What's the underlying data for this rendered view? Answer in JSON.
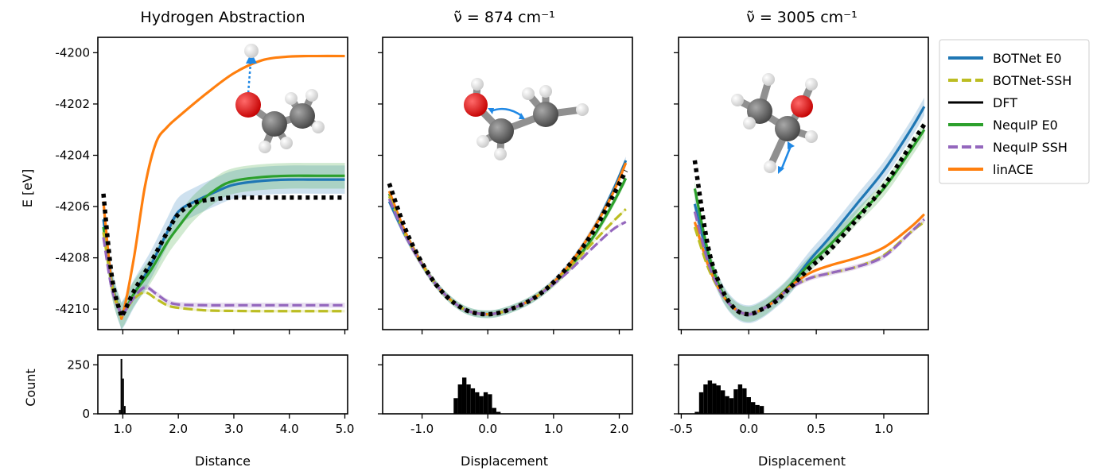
{
  "figure": {
    "panel_titles": [
      "Hydrogen Abstraction",
      "ν̃ = 874 cm⁻¹",
      "ν̃ = 3005 cm⁻¹"
    ],
    "ylabel_top": "E [eV]",
    "ylabel_bottom": "Count",
    "xlabels": [
      "Distance",
      "Displacement",
      "Displacement"
    ]
  },
  "legend": [
    {
      "label": "BOTNet E0",
      "color": "#1f77b4",
      "dash": "solid"
    },
    {
      "label": "BOTNet-SSH",
      "color": "#bcbd22",
      "dash": "dashed"
    },
    {
      "label": "DFT",
      "color": "#000000",
      "dash": "solid"
    },
    {
      "label": "NequIP E0",
      "color": "#2ca02c",
      "dash": "solid"
    },
    {
      "label": "NequIP SSH",
      "color": "#9467bd",
      "dash": "dashed"
    },
    {
      "label": "linACE",
      "color": "#ff7f0e",
      "dash": "solid"
    }
  ],
  "chart_data": [
    {
      "type": "line",
      "title": "Hydrogen Abstraction",
      "ylabel": "E [eV]",
      "xlabel": "Distance",
      "xlim": [
        0.55,
        5.05
      ],
      "ylim": [
        -4210.8,
        -4199.4
      ],
      "xticks": [
        1.0,
        2.0,
        3.0,
        4.0,
        5.0
      ],
      "xtick_labels": [
        "1.0",
        "2.0",
        "3.0",
        "4.0",
        "5.0"
      ],
      "yticks": [
        -4210,
        -4208,
        -4206,
        -4204,
        -4202,
        -4200
      ],
      "ytick_labels": [
        "-4210",
        "-4208",
        "-4206",
        "-4204",
        "-4202",
        "-4200"
      ],
      "series": [
        {
          "name": "BOTNet E0",
          "x": [
            0.65,
            0.8,
            0.95,
            1.0,
            1.2,
            1.5,
            1.8,
            2.0,
            2.3,
            2.7,
            3.0,
            3.5,
            4.0,
            4.5,
            5.0
          ],
          "y": [
            -4206.5,
            -4208.9,
            -4210.1,
            -4210.2,
            -4209.4,
            -4208.3,
            -4207.0,
            -4206.2,
            -4205.8,
            -4205.4,
            -4205.15,
            -4205.0,
            -4204.95,
            -4204.95,
            -4204.95
          ],
          "band": 0.55
        },
        {
          "name": "BOTNet-SSH",
          "x": [
            0.65,
            0.8,
            0.95,
            1.0,
            1.2,
            1.4,
            1.6,
            1.8,
            2.0,
            2.5,
            3.0,
            3.5,
            4.0,
            4.5,
            5.0
          ],
          "y": [
            -4207.0,
            -4209.0,
            -4210.1,
            -4210.2,
            -4209.6,
            -4209.35,
            -4209.6,
            -4209.85,
            -4209.95,
            -4210.05,
            -4210.07,
            -4210.08,
            -4210.08,
            -4210.08,
            -4210.08
          ],
          "band": 0.05
        },
        {
          "name": "DFT",
          "x": [
            0.65,
            0.8,
            0.95,
            1.0,
            1.2,
            1.5,
            1.8,
            2.0,
            2.3,
            2.7,
            3.0,
            3.5,
            4.0,
            4.5,
            5.0
          ],
          "y": [
            -4205.5,
            -4208.7,
            -4210.1,
            -4210.2,
            -4209.3,
            -4208.2,
            -4207.0,
            -4206.3,
            -4205.85,
            -4205.7,
            -4205.65,
            -4205.65,
            -4205.65,
            -4205.65,
            -4205.65
          ],
          "band": 0
        },
        {
          "name": "NequIP E0",
          "x": [
            0.65,
            0.8,
            0.95,
            1.0,
            1.2,
            1.5,
            1.8,
            2.0,
            2.3,
            2.7,
            3.0,
            3.5,
            4.0,
            4.5,
            5.0
          ],
          "y": [
            -4206.8,
            -4209.0,
            -4210.1,
            -4210.2,
            -4209.4,
            -4208.5,
            -4207.4,
            -4206.8,
            -4206.0,
            -4205.3,
            -4205.0,
            -4204.85,
            -4204.8,
            -4204.8,
            -4204.8
          ],
          "band": 0.5
        },
        {
          "name": "NequIP SSH",
          "x": [
            0.65,
            0.8,
            0.95,
            1.0,
            1.2,
            1.4,
            1.6,
            1.8,
            2.0,
            2.5,
            3.0,
            3.5,
            4.0,
            4.5,
            5.0
          ],
          "y": [
            -4207.2,
            -4209.2,
            -4210.1,
            -4210.2,
            -4209.55,
            -4209.15,
            -4209.4,
            -4209.7,
            -4209.82,
            -4209.85,
            -4209.85,
            -4209.85,
            -4209.85,
            -4209.85,
            -4209.85
          ],
          "band": 0.1
        },
        {
          "name": "linACE",
          "x": [
            0.65,
            0.8,
            0.95,
            1.0,
            1.2,
            1.4,
            1.6,
            1.8,
            2.0,
            2.5,
            3.0,
            3.5,
            4.0,
            4.5,
            5.0
          ],
          "y": [
            -4205.8,
            -4209.0,
            -4210.1,
            -4210.2,
            -4208.0,
            -4205.2,
            -4203.5,
            -4202.9,
            -4202.5,
            -4201.6,
            -4200.8,
            -4200.3,
            -4200.15,
            -4200.13,
            -4200.13
          ],
          "band": 0
        }
      ]
    },
    {
      "type": "line",
      "title": "ν̃ = 874 cm⁻¹",
      "xlabel": "Displacement",
      "xlim": [
        -1.6,
        2.2
      ],
      "ylim": [
        -4210.8,
        -4199.4
      ],
      "xticks": [
        -1.0,
        0.0,
        1.0,
        2.0
      ],
      "xtick_labels": [
        "-1.0",
        "0.0",
        "1.0",
        "2.0"
      ],
      "yticks": [
        -4210,
        -4208,
        -4206,
        -4204,
        -4202,
        -4200
      ],
      "series": [
        {
          "name": "BOTNet E0",
          "x": [
            -1.5,
            -1.2,
            -0.8,
            -0.4,
            0.0,
            0.4,
            0.8,
            1.2,
            1.6,
            1.9,
            2.1
          ],
          "y": [
            -4205.8,
            -4207.4,
            -4209.0,
            -4209.95,
            -4210.2,
            -4209.95,
            -4209.4,
            -4208.4,
            -4206.9,
            -4205.4,
            -4204.2
          ],
          "band": 0.15
        },
        {
          "name": "BOTNet-SSH",
          "x": [
            -1.5,
            -1.2,
            -0.8,
            -0.4,
            0.0,
            0.4,
            0.8,
            1.2,
            1.6,
            1.9,
            2.1
          ],
          "y": [
            -4205.6,
            -4207.4,
            -4209.0,
            -4209.95,
            -4210.2,
            -4209.95,
            -4209.4,
            -4208.5,
            -4207.4,
            -4206.6,
            -4206.1
          ],
          "band": 0.05
        },
        {
          "name": "DFT",
          "x": [
            -1.5,
            -1.2,
            -0.8,
            -0.4,
            0.0,
            0.4,
            0.8,
            1.2,
            1.6,
            1.9,
            2.1
          ],
          "y": [
            -4205.1,
            -4207.2,
            -4209.0,
            -4209.95,
            -4210.2,
            -4209.95,
            -4209.4,
            -4208.4,
            -4207.0,
            -4205.6,
            -4204.6
          ],
          "band": 0
        },
        {
          "name": "NequIP E0",
          "x": [
            -1.5,
            -1.2,
            -0.8,
            -0.4,
            0.0,
            0.4,
            0.8,
            1.2,
            1.6,
            1.9,
            2.1
          ],
          "y": [
            -4205.5,
            -4207.3,
            -4209.0,
            -4209.95,
            -4210.2,
            -4209.95,
            -4209.4,
            -4208.5,
            -4207.2,
            -4205.9,
            -4204.9
          ],
          "band": 0.15
        },
        {
          "name": "NequIP SSH",
          "x": [
            -1.5,
            -1.2,
            -0.8,
            -0.4,
            0.0,
            0.4,
            0.8,
            1.2,
            1.6,
            1.9,
            2.1
          ],
          "y": [
            -4205.7,
            -4207.4,
            -4209.0,
            -4209.95,
            -4210.2,
            -4209.95,
            -4209.4,
            -4208.6,
            -4207.6,
            -4206.9,
            -4206.6
          ],
          "band": 0.05
        },
        {
          "name": "linACE",
          "x": [
            -1.5,
            -1.2,
            -0.8,
            -0.4,
            0.0,
            0.4,
            0.8,
            1.2,
            1.6,
            1.9,
            2.1
          ],
          "y": [
            -4205.4,
            -4207.3,
            -4209.0,
            -4209.95,
            -4210.2,
            -4209.95,
            -4209.4,
            -4208.4,
            -4206.9,
            -4205.5,
            -4204.3
          ],
          "band": 0
        }
      ]
    },
    {
      "type": "line",
      "title": "ν̃ = 3005 cm⁻¹",
      "xlabel": "Displacement",
      "xlim": [
        -0.52,
        1.33
      ],
      "ylim": [
        -4210.8,
        -4199.4
      ],
      "xticks": [
        -0.5,
        0.0,
        0.5,
        1.0
      ],
      "xtick_labels": [
        "-0.5",
        "0.0",
        "0.5",
        "1.0"
      ],
      "yticks": [
        -4210,
        -4208,
        -4206,
        -4204,
        -4202,
        -4200
      ],
      "series": [
        {
          "name": "BOTNet E0",
          "x": [
            -0.4,
            -0.3,
            -0.2,
            -0.1,
            0.0,
            0.1,
            0.2,
            0.3,
            0.45,
            0.6,
            0.8,
            1.0,
            1.2,
            1.3
          ],
          "y": [
            -4205.9,
            -4208.0,
            -4209.3,
            -4210.0,
            -4210.2,
            -4210.0,
            -4209.6,
            -4209.1,
            -4208.1,
            -4207.2,
            -4205.9,
            -4204.6,
            -4203.0,
            -4202.1
          ],
          "band": 0.35
        },
        {
          "name": "BOTNet-SSH",
          "x": [
            -0.4,
            -0.3,
            -0.2,
            -0.1,
            0.0,
            0.1,
            0.2,
            0.3,
            0.45,
            0.6,
            0.8,
            1.0,
            1.2,
            1.3
          ],
          "y": [
            -4206.8,
            -4208.4,
            -4209.4,
            -4210.0,
            -4210.2,
            -4210.0,
            -4209.65,
            -4209.2,
            -4208.8,
            -4208.6,
            -4208.35,
            -4207.9,
            -4207.0,
            -4206.6
          ],
          "band": 0.05
        },
        {
          "name": "DFT",
          "x": [
            -0.4,
            -0.3,
            -0.2,
            -0.1,
            0.0,
            0.1,
            0.2,
            0.3,
            0.45,
            0.6,
            0.8,
            1.0,
            1.2,
            1.3
          ],
          "y": [
            -4204.2,
            -4207.6,
            -4209.2,
            -4210.0,
            -4210.2,
            -4210.0,
            -4209.7,
            -4209.2,
            -4208.4,
            -4207.7,
            -4206.5,
            -4205.2,
            -4203.6,
            -4202.8
          ],
          "band": 0
        },
        {
          "name": "NequIP E0",
          "x": [
            -0.4,
            -0.3,
            -0.2,
            -0.1,
            0.0,
            0.1,
            0.2,
            0.3,
            0.45,
            0.6,
            0.8,
            1.0,
            1.2,
            1.3
          ],
          "y": [
            -4205.3,
            -4207.8,
            -4209.3,
            -4210.0,
            -4210.2,
            -4210.0,
            -4209.6,
            -4209.1,
            -4208.25,
            -4207.5,
            -4206.4,
            -4205.3,
            -4203.8,
            -4203.0
          ],
          "band": 0.3
        },
        {
          "name": "NequIP SSH",
          "x": [
            -0.4,
            -0.3,
            -0.2,
            -0.1,
            0.0,
            0.1,
            0.2,
            0.3,
            0.45,
            0.6,
            0.8,
            1.0,
            1.2,
            1.3
          ],
          "y": [
            -4206.2,
            -4208.2,
            -4209.4,
            -4210.0,
            -4210.2,
            -4210.0,
            -4209.65,
            -4209.2,
            -4208.8,
            -4208.6,
            -4208.35,
            -4207.95,
            -4207.0,
            -4206.5
          ],
          "band": 0.1
        },
        {
          "name": "linACE",
          "x": [
            -0.4,
            -0.3,
            -0.2,
            -0.1,
            0.0,
            0.1,
            0.2,
            0.3,
            0.45,
            0.6,
            0.8,
            1.0,
            1.2,
            1.3
          ],
          "y": [
            -4206.6,
            -4208.3,
            -4209.4,
            -4210.0,
            -4210.2,
            -4210.0,
            -4209.65,
            -4209.15,
            -4208.6,
            -4208.3,
            -4208.0,
            -4207.6,
            -4206.8,
            -4206.3
          ],
          "band": 0
        }
      ]
    },
    {
      "type": "bar",
      "ylabel": "Count",
      "xlabel": "Distance",
      "xlim": [
        0.55,
        5.05
      ],
      "ylim": [
        0,
        300
      ],
      "xticks": [
        1.0,
        2.0,
        3.0,
        4.0,
        5.0
      ],
      "xtick_labels": [
        "1.0",
        "2.0",
        "3.0",
        "4.0",
        "5.0"
      ],
      "yticks": [
        0,
        250
      ],
      "ytick_labels": [
        "0",
        "250"
      ],
      "bin_width": 0.03,
      "bin_left": [
        0.93,
        0.96,
        0.99,
        1.02
      ],
      "values": [
        20,
        280,
        180,
        40
      ]
    },
    {
      "type": "bar",
      "xlabel": "Displacement",
      "xlim": [
        -1.6,
        2.2
      ],
      "ylim": [
        0,
        300
      ],
      "xticks": [
        -1.0,
        0.0,
        1.0,
        2.0
      ],
      "xtick_labels": [
        "-1.0",
        "0.0",
        "1.0",
        "2.0"
      ],
      "yticks": [
        0,
        250
      ],
      "bin_width": 0.065,
      "bin_left": [
        -0.52,
        -0.455,
        -0.39,
        -0.325,
        -0.26,
        -0.195,
        -0.13,
        -0.065,
        0.0,
        0.065,
        0.13
      ],
      "values": [
        80,
        150,
        185,
        150,
        130,
        110,
        90,
        110,
        100,
        30,
        10
      ]
    },
    {
      "type": "bar",
      "xlabel": "Displacement",
      "xlim": [
        -0.52,
        1.33
      ],
      "ylim": [
        0,
        300
      ],
      "xticks": [
        -0.5,
        0.0,
        0.5,
        1.0
      ],
      "xtick_labels": [
        "-0.5",
        "0.0",
        "0.5",
        "1.0"
      ],
      "yticks": [
        0,
        250
      ],
      "bin_width": 0.032,
      "bin_left": [
        -0.4,
        -0.368,
        -0.336,
        -0.304,
        -0.272,
        -0.24,
        -0.208,
        -0.176,
        -0.144,
        -0.112,
        -0.08,
        -0.048,
        -0.016,
        0.016,
        0.048,
        0.08
      ],
      "values": [
        10,
        110,
        150,
        170,
        155,
        145,
        120,
        90,
        80,
        125,
        150,
        130,
        85,
        60,
        45,
        40
      ]
    }
  ]
}
